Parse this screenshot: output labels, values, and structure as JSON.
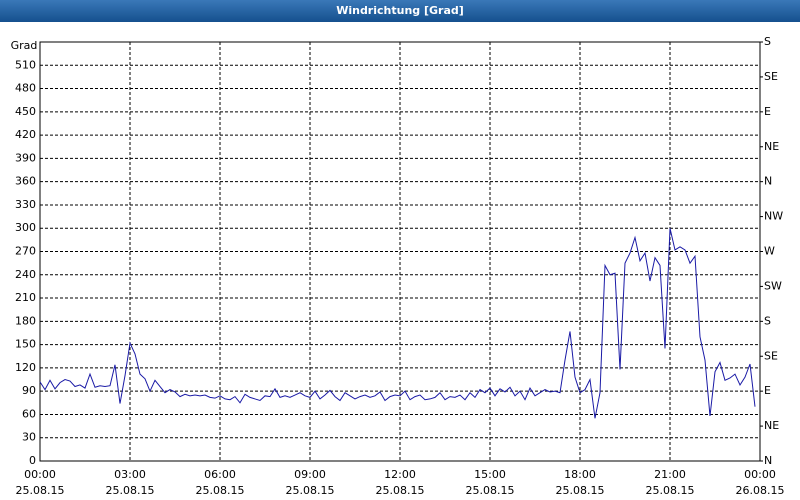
{
  "chart_data": {
    "type": "line",
    "title": "Windrichtung [Grad]",
    "ylabel": "Grad",
    "x": [
      0,
      10,
      20,
      30,
      40,
      50,
      60,
      70,
      80,
      90,
      100,
      110,
      120,
      130,
      140,
      150,
      160,
      170,
      180,
      190,
      200,
      210,
      220,
      230,
      240,
      250,
      260,
      270,
      280,
      290,
      300,
      310,
      320,
      330,
      340,
      350,
      360,
      370,
      380,
      390,
      400,
      410,
      420,
      430,
      440,
      450,
      460,
      470,
      480,
      490,
      500,
      510,
      520,
      530,
      540,
      550,
      560,
      570,
      580,
      590,
      600,
      610,
      620,
      630,
      640,
      650,
      660,
      670,
      680,
      690,
      700,
      710,
      720,
      730,
      740,
      750,
      760,
      770,
      780,
      790,
      800,
      810,
      820,
      830,
      840,
      850,
      860,
      870,
      880,
      890,
      900,
      910,
      920,
      930,
      940,
      950,
      960,
      970,
      980,
      990,
      1000,
      1010,
      1020,
      1030,
      1040,
      1050,
      1060,
      1070,
      1080,
      1090,
      1100,
      1110,
      1120,
      1130,
      1140,
      1150,
      1160,
      1170,
      1180,
      1190,
      1200,
      1210,
      1220,
      1230,
      1240,
      1250,
      1260,
      1270,
      1280,
      1290,
      1300,
      1310,
      1320,
      1330,
      1340,
      1350,
      1360,
      1370,
      1380,
      1390,
      1400,
      1410,
      1420,
      1430
    ],
    "series": [
      {
        "color": "#1a1aa6",
        "values": [
          102,
          92,
          104,
          93,
          101,
          105,
          103,
          96,
          98,
          94,
          112,
          95,
          97,
          96,
          97,
          124,
          74,
          110,
          152,
          138,
          112,
          106,
          90,
          104,
          96,
          88,
          92,
          89,
          83,
          86,
          84,
          85,
          84,
          85,
          82,
          81,
          84,
          80,
          79,
          83,
          75,
          86,
          82,
          80,
          78,
          84,
          83,
          93,
          82,
          84,
          82,
          85,
          88,
          84,
          82,
          90,
          80,
          85,
          91,
          83,
          78,
          88,
          84,
          80,
          83,
          85,
          82,
          84,
          89,
          78,
          83,
          85,
          84,
          90,
          79,
          83,
          85,
          79,
          80,
          82,
          88,
          79,
          83,
          82,
          85,
          79,
          88,
          82,
          92,
          88,
          94,
          84,
          93,
          89,
          95,
          84,
          90,
          79,
          94,
          84,
          88,
          92,
          89,
          90,
          88,
          130,
          167,
          108,
          88,
          92,
          105,
          55,
          88,
          252,
          240,
          242,
          118,
          255,
          268,
          288,
          258,
          268,
          232,
          262,
          252,
          145,
          300,
          272,
          276,
          272,
          255,
          264,
          160,
          130,
          58,
          115,
          127,
          104,
          107,
          112,
          98,
          108,
          125,
          70
        ]
      }
    ],
    "xlim": [
      0,
      1440
    ],
    "xticks": [
      {
        "value": 0,
        "label": "00:00\n25.08.15"
      },
      {
        "value": 180,
        "label": "03:00\n25.08.15"
      },
      {
        "value": 360,
        "label": "06:00\n25.08.15"
      },
      {
        "value": 540,
        "label": "09:00\n25.08.15"
      },
      {
        "value": 720,
        "label": "12:00\n25.08.15"
      },
      {
        "value": 900,
        "label": "15:00\n25.08.15"
      },
      {
        "value": 1080,
        "label": "18:00\n25.08.15"
      },
      {
        "value": 1260,
        "label": "21:00\n25.08.15"
      },
      {
        "value": 1440,
        "label": "00:00\n26.08.15"
      }
    ],
    "ylim": [
      0,
      540
    ],
    "yticks": [
      0,
      30,
      60,
      90,
      120,
      150,
      180,
      210,
      240,
      270,
      300,
      330,
      360,
      390,
      420,
      450,
      480,
      510
    ],
    "y2lim": [
      0,
      540
    ],
    "y2ticks": [
      {
        "value": 0,
        "label": "N"
      },
      {
        "value": 45,
        "label": "NE"
      },
      {
        "value": 90,
        "label": "E"
      },
      {
        "value": 135,
        "label": "SE"
      },
      {
        "value": 180,
        "label": "S"
      },
      {
        "value": 225,
        "label": "SW"
      },
      {
        "value": 270,
        "label": "W"
      },
      {
        "value": 315,
        "label": "NW"
      },
      {
        "value": 360,
        "label": "N"
      },
      {
        "value": 405,
        "label": "NE"
      },
      {
        "value": 450,
        "label": "E"
      },
      {
        "value": 495,
        "label": "SE"
      },
      {
        "value": 540,
        "label": "S"
      }
    ],
    "grid": true
  }
}
